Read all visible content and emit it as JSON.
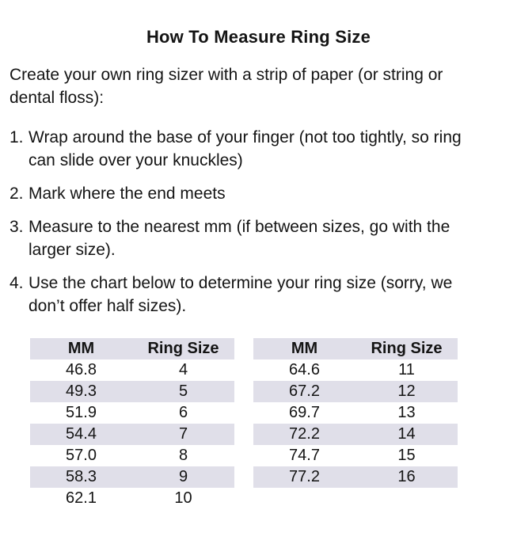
{
  "colors": {
    "background": "#ffffff",
    "text": "#141414",
    "table_stripe": "#e0dfe9"
  },
  "title": "How To Measure Ring Size",
  "intro_lines": [
    "Create your own ring sizer with a strip of paper (or string or",
    "dental floss):"
  ],
  "steps": [
    {
      "num": "1.",
      "lines": [
        "Wrap around the base of your finger (not too tightly, so ring",
        "can slide over your knuckles)"
      ]
    },
    {
      "num": "2.",
      "lines": [
        "Mark where the end meets"
      ]
    },
    {
      "num": "3.",
      "lines": [
        "Measure to the nearest mm (if between sizes, go with the",
        "larger size)."
      ]
    },
    {
      "num": "4.",
      "lines": [
        "Use the chart below to determine your ring size (sorry, we",
        "don’t offer half sizes)."
      ]
    }
  ],
  "tables": [
    {
      "headers": [
        "MM",
        "Ring Size"
      ],
      "rows": [
        [
          "46.8",
          "4"
        ],
        [
          "49.3",
          "5"
        ],
        [
          "51.9",
          "6"
        ],
        [
          "54.4",
          "7"
        ],
        [
          "57.0",
          "8"
        ],
        [
          "58.3",
          "9"
        ],
        [
          "62.1",
          "10"
        ]
      ]
    },
    {
      "headers": [
        "MM",
        "Ring Size"
      ],
      "rows": [
        [
          "64.6",
          "11"
        ],
        [
          "67.2",
          "12"
        ],
        [
          "69.7",
          "13"
        ],
        [
          "72.2",
          "14"
        ],
        [
          "74.7",
          "15"
        ],
        [
          "77.2",
          "16"
        ]
      ]
    }
  ]
}
